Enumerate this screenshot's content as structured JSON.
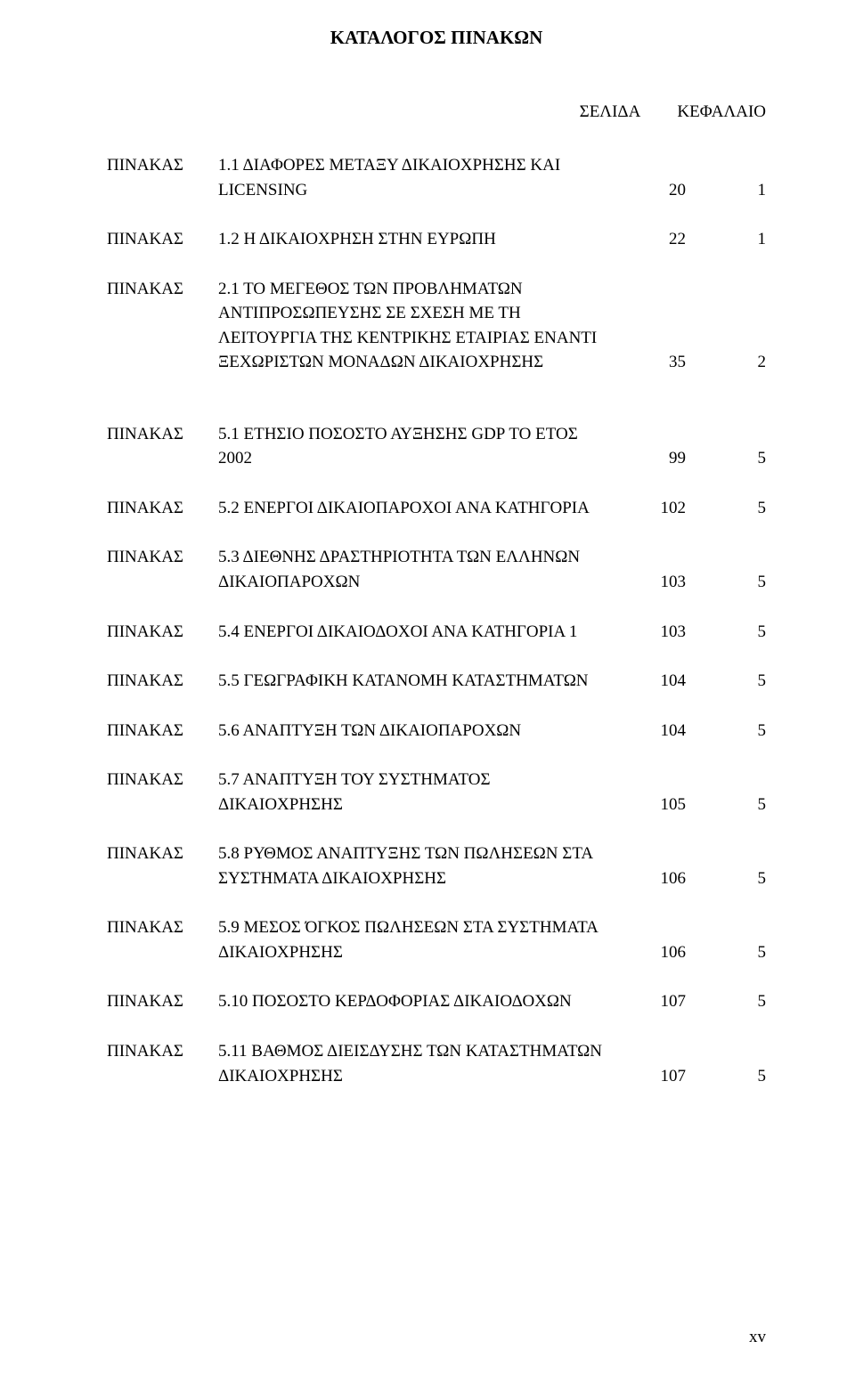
{
  "title": "ΚΑΤΑΛΟΓΟΣ ΠΙΝΑΚΩΝ",
  "column_headers": {
    "page": "ΣΕΛΙΔΑ",
    "chapter": "ΚΕΦΑΛΑΙΟ"
  },
  "label_prefix": "ΠΙΝΑΚΑΣ",
  "entries": [
    {
      "num": "1.1",
      "desc": "ΔΙΑΦΟΡΕΣ ΜΕΤΑΞΥ ΔΙΚΑΙΟΧΡΗΣΗΣ ΚΑΙ LICENSING",
      "page": "20",
      "chapter": "1",
      "gap_after": false
    },
    {
      "num": "1.2",
      "desc": "Η ΔΙΚΑΙΟΧΡΗΣΗ ΣΤΗΝ ΕΥΡΩΠΗ",
      "page": "22",
      "chapter": "1",
      "gap_after": false
    },
    {
      "num": "2.1",
      "desc": "ΤΟ ΜΕΓΕΘΟΣ ΤΩΝ ΠΡΟΒΛΗΜΑΤΩΝ ΑΝΤΙΠΡΟΣΩΠΕΥΣΗΣ ΣΕ ΣΧΕΣΗ ΜΕ ΤΗ ΛΕΙΤΟΥΡΓΙΑ ΤΗΣ ΚΕΝΤΡΙΚΗΣ ΕΤΑΙΡΙΑΣ ΕΝΑΝΤΙ ΞΕΧΩΡΙΣΤΩΝ ΜΟΝΑΔΩΝ ΔΙΚΑΙΟΧΡΗΣΗΣ",
      "page": "35",
      "chapter": "2",
      "gap_after": true
    },
    {
      "num": "5.1",
      "desc": "ΕΤΗΣΙΟ ΠΟΣΟΣΤΟ ΑΥΞΗΣΗΣ GDP ΤΟ ΕΤΟΣ 2002",
      "page": "99",
      "chapter": "5",
      "gap_after": false
    },
    {
      "num": "5.2",
      "desc": "ΕΝΕΡΓΟΙ ΔΙΚΑΙΟΠΑΡΟΧΟΙ ΑΝΑ ΚΑΤΗΓΟΡΙΑ",
      "page": "102",
      "chapter": "5",
      "gap_after": false
    },
    {
      "num": "5.3",
      "desc": "ΔΙΕΘΝΗΣ ΔΡΑΣΤΗΡΙΟΤΗΤΑ ΤΩΝ ΕΛΛΗΝΩΝ ΔΙΚΑΙΟΠΑΡΟΧΩΝ",
      "page": "103",
      "chapter": "5",
      "gap_after": false
    },
    {
      "num": "5.4",
      "desc": "ΕΝΕΡΓΟΙ ΔΙΚΑΙΟΔΟΧΟΙ ΑΝΑ ΚΑΤΗΓΟΡΙΑ 1",
      "page": "103",
      "chapter": "5",
      "gap_after": false
    },
    {
      "num": "5.5",
      "desc": "ΓΕΩΓΡΑΦΙΚΗ ΚΑΤΑΝΟΜΗ ΚΑΤΑΣΤΗΜΑΤΩΝ",
      "page": "104",
      "chapter": "5",
      "gap_after": false
    },
    {
      "num": "5.6",
      "desc": "ΑΝΑΠΤΥΞΗ ΤΩΝ ΔΙΚΑΙΟΠΑΡΟΧΩΝ",
      "page": "104",
      "chapter": "5",
      "gap_after": false
    },
    {
      "num": "5.7",
      "desc": "ΑΝΑΠΤΥΞΗ ΤΟΥ ΣΥΣΤΗΜΑΤΟΣ ΔΙΚΑΙΟΧΡΗΣΗΣ",
      "page": "105",
      "chapter": "5",
      "gap_after": false
    },
    {
      "num": "5.8",
      "desc": "ΡΥΘΜΟΣ ΑΝΑΠΤΥΞΗΣ ΤΩΝ ΠΩΛΗΣΕΩΝ ΣΤΑ ΣΥΣΤΗΜΑΤΑ ΔΙΚΑΙΟΧΡΗΣΗΣ",
      "page": "106",
      "chapter": "5",
      "gap_after": false
    },
    {
      "num": "5.9",
      "desc": "ΜΕΣΟΣ ΌΓΚΟΣ ΠΩΛΗΣΕΩΝ ΣΤΑ ΣΥΣΤΗΜΑΤΑ ΔΙΚΑΙΟΧΡΗΣΗΣ",
      "page": "106",
      "chapter": "5",
      "gap_after": false
    },
    {
      "num": "5.10",
      "desc": "ΠΟΣΟΣΤΟ ΚΕΡΔΟΦΟΡΙΑΣ ΔΙΚΑΙΟΔΟΧΩΝ",
      "page": "107",
      "chapter": "5",
      "gap_after": false
    },
    {
      "num": "5.11",
      "desc": "ΒΑΘΜΟΣ ΔΙΕΙΣΔΥΣΗΣ ΤΩΝ ΚΑΤΑΣΤΗΜΑΤΩΝ ΔΙΚΑΙΟΧΡΗΣΗΣ",
      "page": "107",
      "chapter": "5",
      "gap_after": false
    }
  ],
  "page_number": "xv",
  "style": {
    "font_family": "Times New Roman",
    "heading_fontsize_pt": 16,
    "body_fontsize_pt": 14,
    "text_color": "#000000",
    "background_color": "#ffffff"
  }
}
